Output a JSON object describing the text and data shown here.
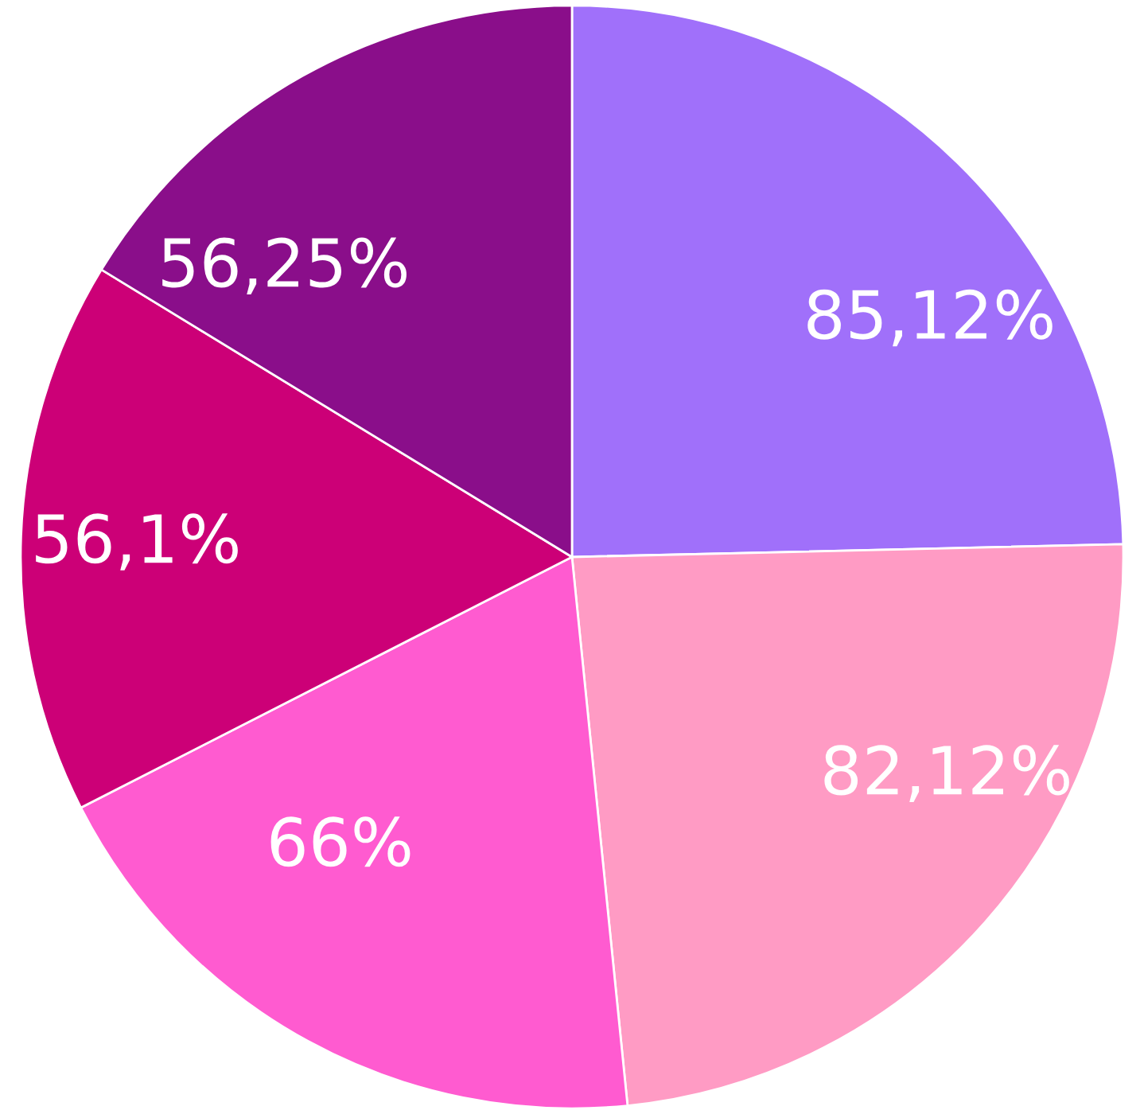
{
  "chart_data": {
    "type": "pie",
    "categories": [
      null,
      null,
      null,
      null,
      null
    ],
    "values": [
      85.12,
      82.12,
      66,
      56.1,
      56.25
    ],
    "value_labels": [
      "85,12%",
      "82,12%",
      "66%",
      "56,1%",
      "56,25%"
    ],
    "colors": [
      "#a070fa",
      "#ff9bc4",
      "#ff5bd0",
      "#cc0077",
      "#8a0e8a"
    ]
  }
}
